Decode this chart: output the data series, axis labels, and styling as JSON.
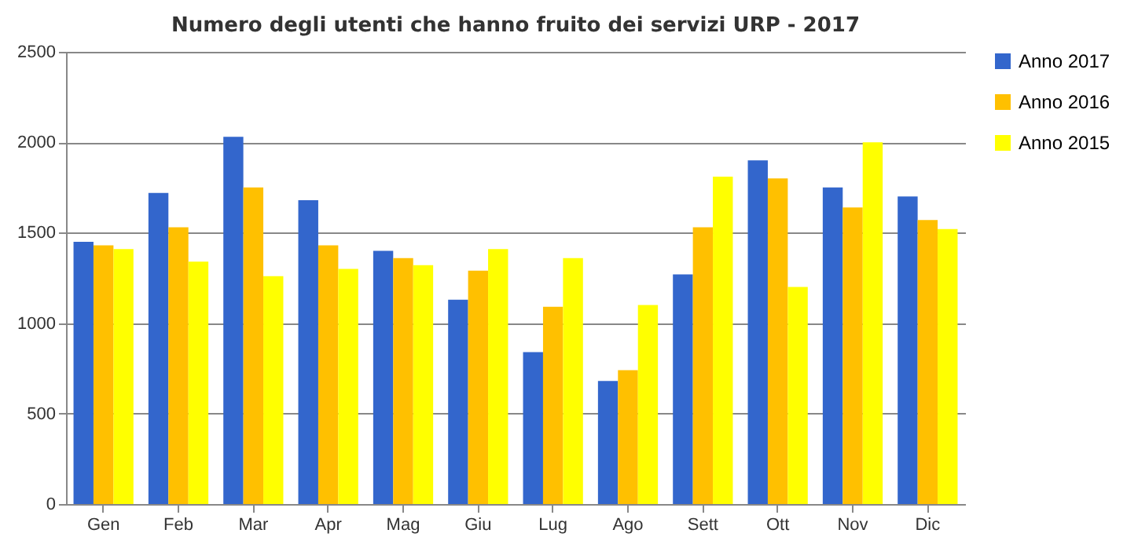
{
  "chart_data": {
    "type": "bar",
    "title": "Numero degli utenti che hanno fruito dei servizi URP - 2017",
    "categories": [
      "Gen",
      "Feb",
      "Mar",
      "Apr",
      "Mag",
      "Giu",
      "Lug",
      "Ago",
      "Sett",
      "Ott",
      "Nov",
      "Dic"
    ],
    "series": [
      {
        "name": "Anno 2017",
        "color": "#3366cc",
        "values": [
          1450,
          1720,
          2030,
          1680,
          1400,
          1130,
          840,
          680,
          1270,
          1900,
          1750,
          1700
        ]
      },
      {
        "name": "Anno 2016",
        "color": "#ffc000",
        "values": [
          1430,
          1530,
          1750,
          1430,
          1360,
          1290,
          1090,
          740,
          1530,
          1800,
          1640,
          1570
        ]
      },
      {
        "name": "Anno 2015",
        "color": "#ffff00",
        "values": [
          1410,
          1340,
          1260,
          1300,
          1320,
          1410,
          1360,
          1100,
          1810,
          1200,
          2000,
          1520
        ]
      }
    ],
    "ylim": [
      0,
      2500
    ],
    "yticks": [
      0,
      500,
      1000,
      1500,
      2000,
      2500
    ],
    "grid": "y",
    "legend": "right"
  }
}
